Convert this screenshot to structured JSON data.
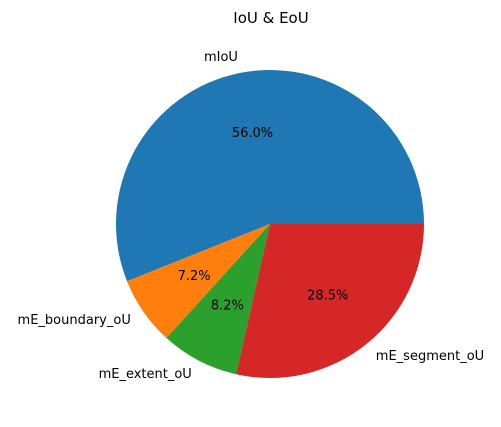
{
  "chart_data": {
    "type": "pie",
    "title": "IoU & EoU",
    "start_angle_deg": 0,
    "direction": "counterclockwise",
    "slices": [
      {
        "label": "mIoU",
        "value": 56.0,
        "pct_label": "56.0%",
        "color": "#1f77b4"
      },
      {
        "label": "mE_boundary_oU",
        "value": 7.2,
        "pct_label": "7.2%",
        "color": "#ff7f0e"
      },
      {
        "label": "mE_extent_oU",
        "value": 8.2,
        "pct_label": "8.2%",
        "color": "#2ca02c"
      },
      {
        "label": "mE_segment_oU",
        "value": 28.5,
        "pct_label": "28.5%",
        "color": "#d62728"
      }
    ]
  }
}
